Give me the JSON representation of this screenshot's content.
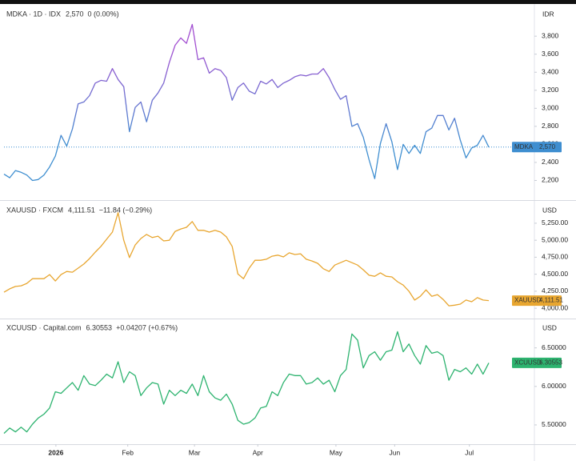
{
  "chart_data": [
    {
      "type": "line",
      "title": "MDKA · 1D · IDX",
      "price_label": "2,570",
      "change_label": "0 (0.00%)",
      "symbol": "MDKA",
      "unit": "IDR",
      "color": [
        "#a24fd1",
        "#3e8ed0"
      ],
      "price_color": "#3e8ed0",
      "price_line": true,
      "values": [
        2270,
        2230,
        2310,
        2290,
        2260,
        2200,
        2210,
        2260,
        2350,
        2470,
        2700,
        2580,
        2770,
        3050,
        3070,
        3140,
        3280,
        3310,
        3300,
        3440,
        3320,
        3240,
        2740,
        3010,
        3070,
        2850,
        3090,
        3170,
        3280,
        3510,
        3700,
        3780,
        3720,
        3930,
        3540,
        3560,
        3390,
        3440,
        3420,
        3340,
        3090,
        3230,
        3280,
        3190,
        3160,
        3300,
        3270,
        3320,
        3230,
        3280,
        3310,
        3350,
        3370,
        3360,
        3380,
        3380,
        3440,
        3340,
        3210,
        3100,
        3140,
        2800,
        2830,
        2680,
        2430,
        2220,
        2610,
        2830,
        2630,
        2320,
        2600,
        2500,
        2590,
        2500,
        2740,
        2780,
        2920,
        2920,
        2760,
        2890,
        2650,
        2450,
        2560,
        2590,
        2700,
        2570
      ],
      "xlim": [
        0,
        93
      ],
      "ylim": [
        2000,
        4130
      ],
      "yticks": [
        {
          "value": 2200,
          "label": "2,200"
        },
        {
          "value": 2400,
          "label": "2,400"
        },
        {
          "value": 2600,
          "label": "2,600"
        },
        {
          "value": 2800,
          "label": "2,800"
        },
        {
          "value": 3000,
          "label": "3,000"
        },
        {
          "value": 3200,
          "label": "3,200"
        },
        {
          "value": 3400,
          "label": "3,400"
        },
        {
          "value": 3600,
          "label": "3,600"
        },
        {
          "value": 3800,
          "label": "3,800"
        }
      ]
    },
    {
      "type": "line",
      "title": "XAUUSD · FXCM",
      "price_label": "4,111.51",
      "change_label": "−11.84 (−0.29%)",
      "symbol": "XAUUSD",
      "unit": "USD",
      "color": "#e8a630",
      "price_color": "#e8a630",
      "price_line": false,
      "values": [
        4235,
        4285,
        4320,
        4330,
        4365,
        4435,
        4435,
        4435,
        4495,
        4400,
        4495,
        4540,
        4530,
        4590,
        4650,
        4730,
        4825,
        4910,
        5015,
        5120,
        5405,
        5000,
        4745,
        4930,
        5025,
        5085,
        5040,
        5060,
        4990,
        5000,
        5130,
        5165,
        5190,
        5275,
        5145,
        5145,
        5120,
        5145,
        5120,
        5050,
        4910,
        4505,
        4435,
        4590,
        4705,
        4705,
        4720,
        4765,
        4780,
        4755,
        4815,
        4790,
        4800,
        4720,
        4695,
        4660,
        4580,
        4540,
        4635,
        4670,
        4705,
        4670,
        4635,
        4565,
        4485,
        4470,
        4520,
        4470,
        4460,
        4390,
        4340,
        4250,
        4120,
        4175,
        4270,
        4175,
        4200,
        4130,
        4035,
        4045,
        4060,
        4120,
        4095,
        4155,
        4120,
        4111.51
      ],
      "xlim": [
        0,
        93
      ],
      "ylim": [
        3860,
        5555
      ],
      "yticks": [
        {
          "value": 4000,
          "label": "4,000.00"
        },
        {
          "value": 4250,
          "label": "4,250.00"
        },
        {
          "value": 4500,
          "label": "4,500.00"
        },
        {
          "value": 4750,
          "label": "4,750.00"
        },
        {
          "value": 5000,
          "label": "5,000.00"
        },
        {
          "value": 5250,
          "label": "5,250.00"
        }
      ]
    },
    {
      "type": "line",
      "title": "XCUUSD · Capital.com",
      "price_label": "6.30553",
      "change_label": "+0.04207 (+0.67%)",
      "symbol": "XCUUSD",
      "unit": "USD",
      "color": "#2db36f",
      "price_color": "#2db36f",
      "price_line": false,
      "values": [
        5.39,
        5.46,
        5.41,
        5.47,
        5.41,
        5.51,
        5.59,
        5.64,
        5.72,
        5.93,
        5.91,
        5.98,
        6.05,
        5.95,
        6.14,
        6.03,
        6.01,
        6.08,
        6.16,
        6.11,
        6.32,
        6.05,
        6.19,
        6.14,
        5.88,
        5.98,
        6.05,
        6.03,
        5.77,
        5.95,
        5.88,
        5.95,
        5.91,
        6.03,
        5.88,
        6.14,
        5.93,
        5.85,
        5.82,
        5.9,
        5.77,
        5.56,
        5.51,
        5.53,
        5.59,
        5.72,
        5.74,
        5.93,
        5.88,
        6.05,
        6.16,
        6.14,
        6.14,
        6.03,
        6.05,
        6.11,
        6.03,
        6.08,
        5.93,
        6.14,
        6.22,
        6.68,
        6.6,
        6.24,
        6.4,
        6.45,
        6.34,
        6.45,
        6.47,
        6.71,
        6.45,
        6.55,
        6.4,
        6.29,
        6.53,
        6.43,
        6.45,
        6.4,
        6.08,
        6.22,
        6.19,
        6.24,
        6.16,
        6.29,
        6.16,
        6.30553
      ],
      "xlim": [
        0,
        93
      ],
      "ylim": [
        5.25,
        6.86
      ],
      "yticks": [
        {
          "value": 5.5,
          "label": "5.50000"
        },
        {
          "value": 6.0,
          "label": "6.00000"
        },
        {
          "value": 6.5,
          "label": "6.50000"
        }
      ],
      "xticks": [
        {
          "value": 9.1,
          "label": "2026"
        },
        {
          "value": 21.7,
          "label": "Feb"
        },
        {
          "value": 33.4,
          "label": "Mar"
        },
        {
          "value": 44.5,
          "label": "Apr"
        },
        {
          "value": 58.2,
          "label": "May"
        },
        {
          "value": 68.5,
          "label": "Jun"
        },
        {
          "value": 81.6,
          "label": "Jul"
        }
      ]
    }
  ]
}
